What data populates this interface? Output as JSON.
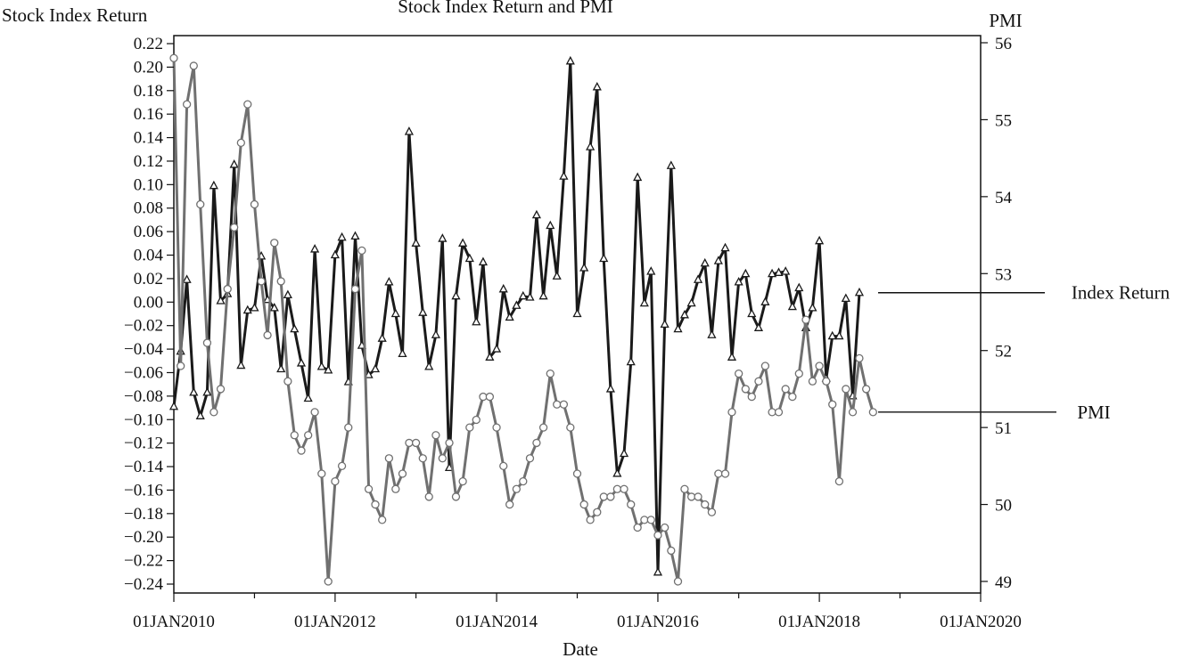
{
  "chart_data": {
    "type": "line",
    "title": "Stock Index Return and PMI",
    "xlabel": "Date",
    "ylabel_left": "Stock Index Return",
    "ylabel_right": "PMI",
    "x_ticks": [
      "01JAN2010",
      "01JAN2012",
      "01JAN2014",
      "01JAN2016",
      "01JAN2018",
      "01JAN2020"
    ],
    "xlim": [
      "2010-01-01",
      "2020-01-01"
    ],
    "ylim_left": [
      -0.24,
      0.22
    ],
    "ylim_right": [
      49,
      56
    ],
    "y_ticks_left": [
      "0.22",
      "0.20",
      "0.18",
      "0.16",
      "0.14",
      "0.12",
      "0.10",
      "0.08",
      "0.06",
      "0.04",
      "0.02",
      "0.00",
      "−0.02",
      "−0.04",
      "−0.06",
      "−0.08",
      "−0.10",
      "−0.12",
      "−0.14",
      "−0.16",
      "−0.18",
      "−0.20",
      "−0.22",
      "−0.24"
    ],
    "y_ticks_right": [
      "56",
      "55",
      "54",
      "53",
      "52",
      "51",
      "50",
      "49"
    ],
    "grid": false,
    "legend_placement": "right, labels attached to series ends",
    "start_month": "2010-01",
    "series": [
      {
        "name": "Index Return",
        "axis": "left",
        "color": "#1a1a1a",
        "marker": "triangle",
        "values": [
          -0.089,
          -0.042,
          0.019,
          -0.077,
          -0.097,
          -0.077,
          0.099,
          0.001,
          0.007,
          0.117,
          -0.054,
          -0.007,
          -0.005,
          0.039,
          0.002,
          -0.005,
          -0.057,
          0.006,
          -0.023,
          -0.052,
          -0.082,
          0.045,
          -0.055,
          -0.058,
          0.04,
          0.055,
          -0.068,
          0.056,
          -0.037,
          -0.062,
          -0.057,
          -0.031,
          0.017,
          -0.01,
          -0.044,
          0.145,
          0.05,
          -0.009,
          -0.055,
          -0.028,
          0.054,
          -0.141,
          0.005,
          0.05,
          0.037,
          -0.017,
          0.034,
          -0.047,
          -0.04,
          0.011,
          -0.013,
          -0.003,
          0.005,
          0.004,
          0.074,
          0.005,
          0.065,
          0.022,
          0.107,
          0.205,
          -0.01,
          0.029,
          0.132,
          0.183,
          0.037,
          -0.074,
          -0.146,
          -0.129,
          -0.051,
          0.106,
          -0.001,
          0.026,
          -0.23,
          -0.019,
          0.116,
          -0.023,
          -0.011,
          -0.001,
          0.019,
          0.033,
          -0.028,
          0.035,
          0.046,
          -0.047,
          0.017,
          0.024,
          -0.01,
          -0.022,
          0.0,
          0.024,
          0.025,
          0.026,
          -0.004,
          0.012,
          -0.022,
          -0.005,
          0.052,
          -0.065,
          -0.029,
          -0.029,
          0.003,
          -0.08,
          0.008
        ]
      },
      {
        "name": "PMI",
        "axis": "right",
        "color": "#707070",
        "marker": "circle",
        "values": [
          55.8,
          51.8,
          55.2,
          55.7,
          53.9,
          52.1,
          51.2,
          51.5,
          52.8,
          53.6,
          54.7,
          55.2,
          53.9,
          52.9,
          52.2,
          53.4,
          52.9,
          51.6,
          50.9,
          50.7,
          50.9,
          51.2,
          50.4,
          49.0,
          50.3,
          50.5,
          51.0,
          52.8,
          53.3,
          50.2,
          50.0,
          49.8,
          50.6,
          50.2,
          50.4,
          50.8,
          50.8,
          50.6,
          50.1,
          50.9,
          50.6,
          50.8,
          50.1,
          50.3,
          51.0,
          51.1,
          51.4,
          51.4,
          51.0,
          50.5,
          50.0,
          50.2,
          50.3,
          50.6,
          50.8,
          51.0,
          51.7,
          51.3,
          51.3,
          51.0,
          50.4,
          50.0,
          49.8,
          49.9,
          50.1,
          50.1,
          50.2,
          50.2,
          50.0,
          49.7,
          49.8,
          49.8,
          49.6,
          49.7,
          49.4,
          49.0,
          50.2,
          50.1,
          50.1,
          50.0,
          49.9,
          50.4,
          50.4,
          51.2,
          51.7,
          51.5,
          51.4,
          51.6,
          51.8,
          51.2,
          51.2,
          51.5,
          51.4,
          51.7,
          52.4,
          51.6,
          51.8,
          51.6,
          51.3,
          50.3,
          51.5,
          51.2,
          51.9,
          51.5,
          51.2
        ]
      }
    ]
  }
}
